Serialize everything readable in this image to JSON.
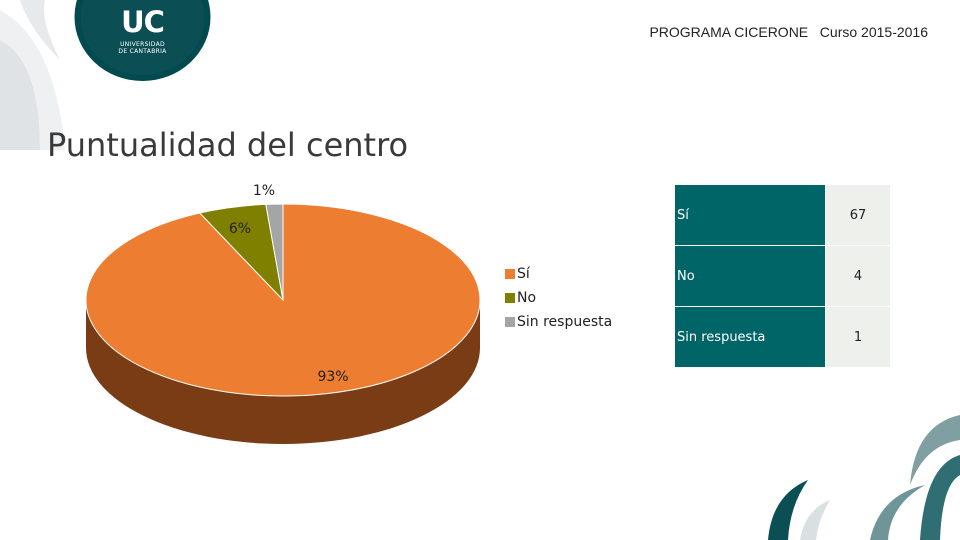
{
  "header": {
    "program": "PROGRAMA CICERONE   Curso 2015-2016",
    "logo_text": "UC",
    "logo_sub_1": "UNIVERSIDAD",
    "logo_sub_2": "DE CANTABRIA"
  },
  "page_title": "Puntualidad del centro",
  "colors": {
    "si": "#ed7d31",
    "si_side": "#7a3c15",
    "no": "#7f7f00",
    "no_side": "#4b4b00",
    "sin": "#a5a5a5",
    "sin_side": "#6f6f6f",
    "table_label_bg": "#006566",
    "table_value_bg": "#eef0ec",
    "brand_dark": "#004a50"
  },
  "chart_data": {
    "type": "pie",
    "categories": [
      "Sí",
      "No",
      "Sin respuesta"
    ],
    "values": [
      67,
      4,
      1
    ],
    "data_labels": [
      "93%",
      "6%",
      "1%"
    ],
    "legend": [
      "Sí",
      "No",
      "Sin respuesta"
    ],
    "legend_position": "right",
    "style": "3d"
  },
  "table": {
    "rows": [
      {
        "label": "Sí",
        "value": "67"
      },
      {
        "label": "No",
        "value": "4"
      },
      {
        "label": "Sin respuesta",
        "value": "1"
      }
    ]
  }
}
